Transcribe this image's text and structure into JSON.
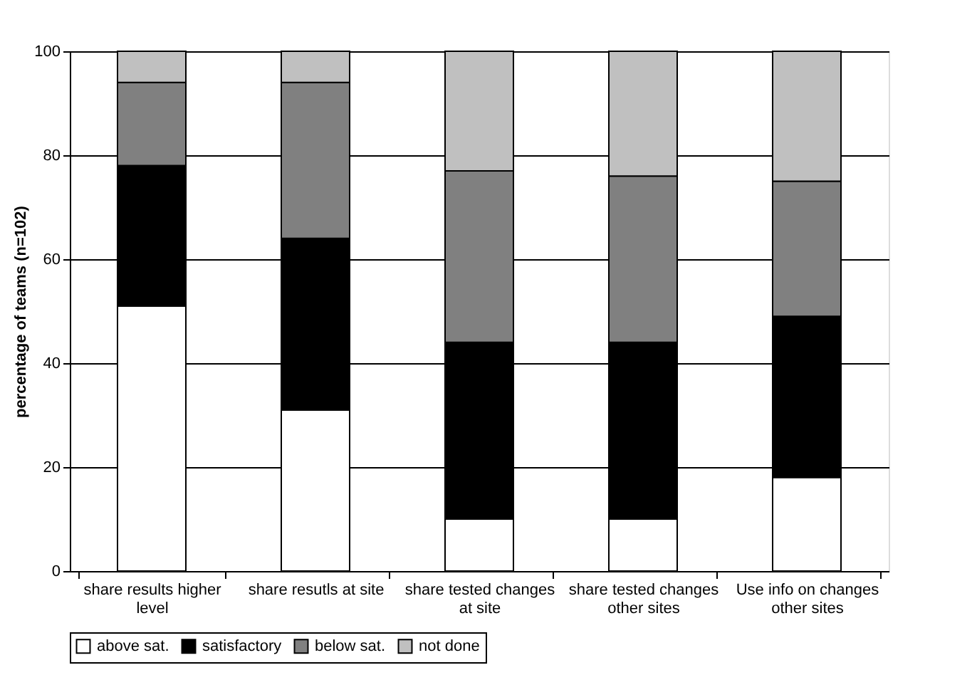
{
  "chart_data": {
    "type": "bar",
    "stacked": true,
    "ylabel": "percentage of teams (n=102)",
    "categories": [
      "share results higher level",
      "share resutls at site",
      "share tested changes at site",
      "share tested changes other sites",
      "Use info on changes other sites"
    ],
    "series": [
      {
        "name": "above sat.",
        "color": "#ffffff",
        "values": [
          51,
          31,
          10,
          10,
          18
        ]
      },
      {
        "name": "satisfactory",
        "color": "#000000",
        "values": [
          27,
          33,
          34,
          34,
          31
        ]
      },
      {
        "name": "below sat.",
        "color": "#808080",
        "values": [
          16,
          30,
          33,
          32,
          26
        ]
      },
      {
        "name": "not done",
        "color": "#c0c0c0",
        "values": [
          6,
          6,
          23,
          24,
          25
        ]
      }
    ],
    "ylim": [
      0,
      100
    ],
    "yticks": [
      0,
      20,
      40,
      60,
      80,
      100
    ],
    "grid": "y",
    "legend": "bottom"
  }
}
